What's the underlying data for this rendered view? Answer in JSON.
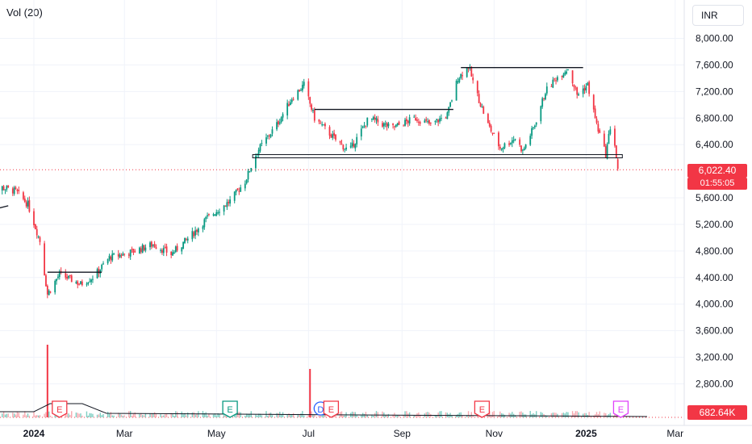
{
  "header": {
    "indicator_label": "Vol (20)",
    "currency": "INR"
  },
  "badges": {
    "last_price": "6,022.40",
    "countdown": "01:55:05",
    "volume": "682.64K"
  },
  "colors": {
    "up": "#089981",
    "down": "#f23645",
    "earnings_green": "#089981",
    "earnings_red": "#f23645",
    "earnings_purple": "#e040fb"
  },
  "chart_data": {
    "type": "candlestick",
    "yticks": [
      "8,000.00",
      "7,600.00",
      "7,200.00",
      "6,800.00",
      "6,400.00",
      "5,600.00",
      "5,200.00",
      "4,800.00",
      "4,400.00",
      "4,000.00",
      "3,600.00",
      "3,200.00",
      "2,800.00"
    ],
    "xticks": [
      "2024",
      "Mar",
      "May",
      "Jul",
      "Sep",
      "Nov",
      "2025",
      "Mar"
    ],
    "ylim": [
      2400,
      8400
    ],
    "price_path": [
      [
        "2023-12-01",
        5600
      ],
      [
        "2023-12-10",
        5760
      ],
      [
        "2023-12-20",
        5700
      ],
      [
        "2023-12-28",
        5500
      ],
      [
        "2024-01-05",
        4950
      ],
      [
        "2024-01-10",
        4150
      ],
      [
        "2024-01-18",
        4450
      ],
      [
        "2024-02-01",
        4300
      ],
      [
        "2024-02-10",
        4420
      ],
      [
        "2024-02-20",
        4700
      ],
      [
        "2024-03-05",
        4780
      ],
      [
        "2024-03-20",
        4900
      ],
      [
        "2024-04-01",
        4750
      ],
      [
        "2024-04-15",
        5050
      ],
      [
        "2024-04-25",
        5300
      ],
      [
        "2024-05-10",
        5550
      ],
      [
        "2024-05-20",
        5850
      ],
      [
        "2024-05-28",
        6300
      ],
      [
        "2024-06-10",
        6700
      ],
      [
        "2024-06-20",
        7100
      ],
      [
        "2024-06-28",
        7300
      ],
      [
        "2024-07-05",
        6800
      ],
      [
        "2024-07-20",
        6450
      ],
      [
        "2024-07-28",
        6300
      ],
      [
        "2024-08-10",
        6800
      ],
      [
        "2024-08-25",
        6650
      ],
      [
        "2024-09-10",
        6800
      ],
      [
        "2024-09-20",
        6700
      ],
      [
        "2024-10-01",
        6850
      ],
      [
        "2024-10-08",
        7400
      ],
      [
        "2024-10-15",
        7580
      ],
      [
        "2024-10-20",
        7200
      ],
      [
        "2024-10-28",
        6700
      ],
      [
        "2024-11-05",
        6350
      ],
      [
        "2024-11-15",
        6500
      ],
      [
        "2024-11-20",
        6300
      ],
      [
        "2024-11-28",
        6700
      ],
      [
        "2024-12-05",
        7200
      ],
      [
        "2024-12-12",
        7400
      ],
      [
        "2024-12-20",
        7550
      ],
      [
        "2024-12-26",
        7150
      ],
      [
        "2025-01-02",
        7300
      ],
      [
        "2025-01-08",
        6700
      ],
      [
        "2025-01-14",
        6250
      ],
      [
        "2025-01-18",
        6800
      ],
      [
        "2025-01-22",
        6000
      ]
    ],
    "trendlines": [
      {
        "from": [
          "2024-01-10",
          4480
        ],
        "to": [
          "2024-02-15",
          4480
        ]
      },
      {
        "from": [
          "2024-07-05",
          6930
        ],
        "to": [
          "2024-10-05",
          6930
        ]
      },
      {
        "from": [
          "2024-10-10",
          7560
        ],
        "to": [
          "2024-12-30",
          7560
        ]
      },
      {
        "from": [
          "2023-12-01",
          5400
        ],
        "to": [
          "2023-12-15",
          5480
        ]
      }
    ],
    "support_zone": {
      "from": "2024-05-25",
      "to": "2025-01-25",
      "low": 6220,
      "high": 6250
    },
    "last_price_line": 6022.4,
    "volume_spikes": [
      {
        "date": "2024-01-10",
        "value": 0.9
      },
      {
        "date": "2024-07-02",
        "value": 0.6
      }
    ],
    "events": [
      {
        "date": "2024-01-18",
        "label": "E",
        "kind": "red"
      },
      {
        "date": "2024-05-10",
        "label": "E",
        "kind": "green"
      },
      {
        "date": "2024-07-09",
        "label": "D",
        "kind": "blue"
      },
      {
        "date": "2024-07-16",
        "label": "E",
        "kind": "red"
      },
      {
        "date": "2024-10-24",
        "label": "E",
        "kind": "red"
      },
      {
        "date": "2025-01-24",
        "label": "E",
        "kind": "purple"
      }
    ]
  }
}
